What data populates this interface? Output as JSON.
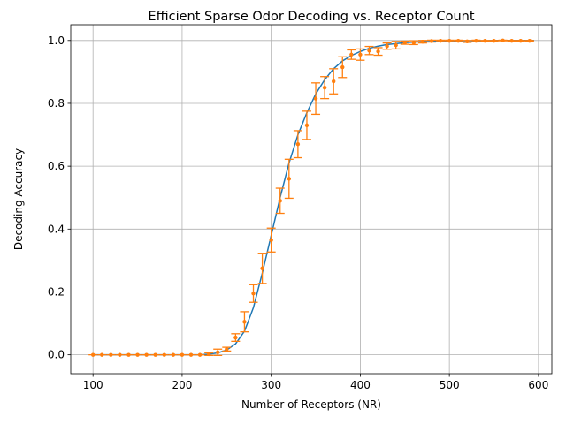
{
  "chart_data": {
    "type": "line",
    "title": "Efficient Sparse Odor Decoding vs. Receptor Count",
    "xlabel": "Number of Receptors (NR)",
    "ylabel": "Decoding Accuracy",
    "xlim": [
      75,
      615
    ],
    "ylim": [
      -0.06,
      1.05
    ],
    "xticks": [
      100,
      200,
      300,
      400,
      500,
      600
    ],
    "yticks": [
      0.0,
      0.2,
      0.4,
      0.6,
      0.8,
      1.0
    ],
    "xtick_labels": [
      "100",
      "200",
      "300",
      "400",
      "500",
      "600"
    ],
    "ytick_labels": [
      "0.0",
      "0.2",
      "0.4",
      "0.6",
      "0.8",
      "1.0"
    ],
    "grid": true,
    "colors": {
      "fit": "#1f77b4",
      "data": "#ff7f0e"
    },
    "series": [
      {
        "kind": "fit-curve",
        "x": [
          100,
          110,
          120,
          130,
          140,
          150,
          160,
          170,
          180,
          190,
          200,
          210,
          220,
          230,
          240,
          250,
          260,
          270,
          280,
          290,
          300,
          310,
          320,
          330,
          340,
          350,
          360,
          370,
          380,
          390,
          400,
          410,
          420,
          430,
          440,
          450,
          460,
          470,
          480,
          490,
          500,
          510,
          520,
          530,
          540,
          550,
          560,
          570,
          580,
          590,
          595
        ],
        "y": [
          0,
          0,
          0,
          0,
          0,
          0,
          0,
          0,
          0,
          0,
          0,
          0,
          0,
          0.002,
          0.006,
          0.015,
          0.035,
          0.075,
          0.15,
          0.26,
          0.38,
          0.5,
          0.61,
          0.7,
          0.77,
          0.83,
          0.875,
          0.91,
          0.935,
          0.952,
          0.965,
          0.975,
          0.982,
          0.987,
          0.99,
          0.993,
          0.995,
          0.996,
          0.997,
          0.998,
          0.998,
          0.999,
          0.999,
          0.999,
          0.999,
          1.0,
          1.0,
          1.0,
          1.0,
          1.0,
          1.0
        ]
      },
      {
        "kind": "data-with-error",
        "x": [
          100,
          110,
          120,
          130,
          140,
          150,
          160,
          170,
          180,
          190,
          200,
          210,
          220,
          230,
          240,
          250,
          260,
          270,
          280,
          290,
          300,
          310,
          320,
          330,
          340,
          350,
          360,
          370,
          380,
          390,
          400,
          410,
          420,
          430,
          440,
          450,
          460,
          470,
          480,
          490,
          500,
          510,
          520,
          530,
          540,
          550,
          560,
          570,
          580,
          590
        ],
        "y": [
          0,
          0,
          0,
          0,
          0,
          0,
          0,
          0,
          0,
          0,
          0,
          0,
          0,
          0.002,
          0.008,
          0.018,
          0.055,
          0.105,
          0.195,
          0.275,
          0.365,
          0.49,
          0.56,
          0.67,
          0.73,
          0.815,
          0.85,
          0.87,
          0.915,
          0.955,
          0.955,
          0.968,
          0.965,
          0.982,
          0.985,
          0.993,
          0.993,
          0.996,
          0.998,
          0.999,
          0.999,
          0.999,
          0.997,
          0.999,
          0.999,
          0.999,
          1.0,
          0.999,
          0.999,
          0.999
        ],
        "err": [
          0,
          0,
          0,
          0,
          0,
          0,
          0,
          0,
          0,
          0,
          0,
          0,
          0,
          0.004,
          0.01,
          0.006,
          0.012,
          0.032,
          0.028,
          0.048,
          0.038,
          0.04,
          0.062,
          0.043,
          0.045,
          0.05,
          0.035,
          0.04,
          0.033,
          0.015,
          0.018,
          0.013,
          0.012,
          0.01,
          0.012,
          0.005,
          0.006,
          0.004,
          0.003,
          0.002,
          0.002,
          0.002,
          0.003,
          0.002,
          0.001,
          0.001,
          0.001,
          0.001,
          0.001,
          0.001
        ]
      }
    ]
  }
}
